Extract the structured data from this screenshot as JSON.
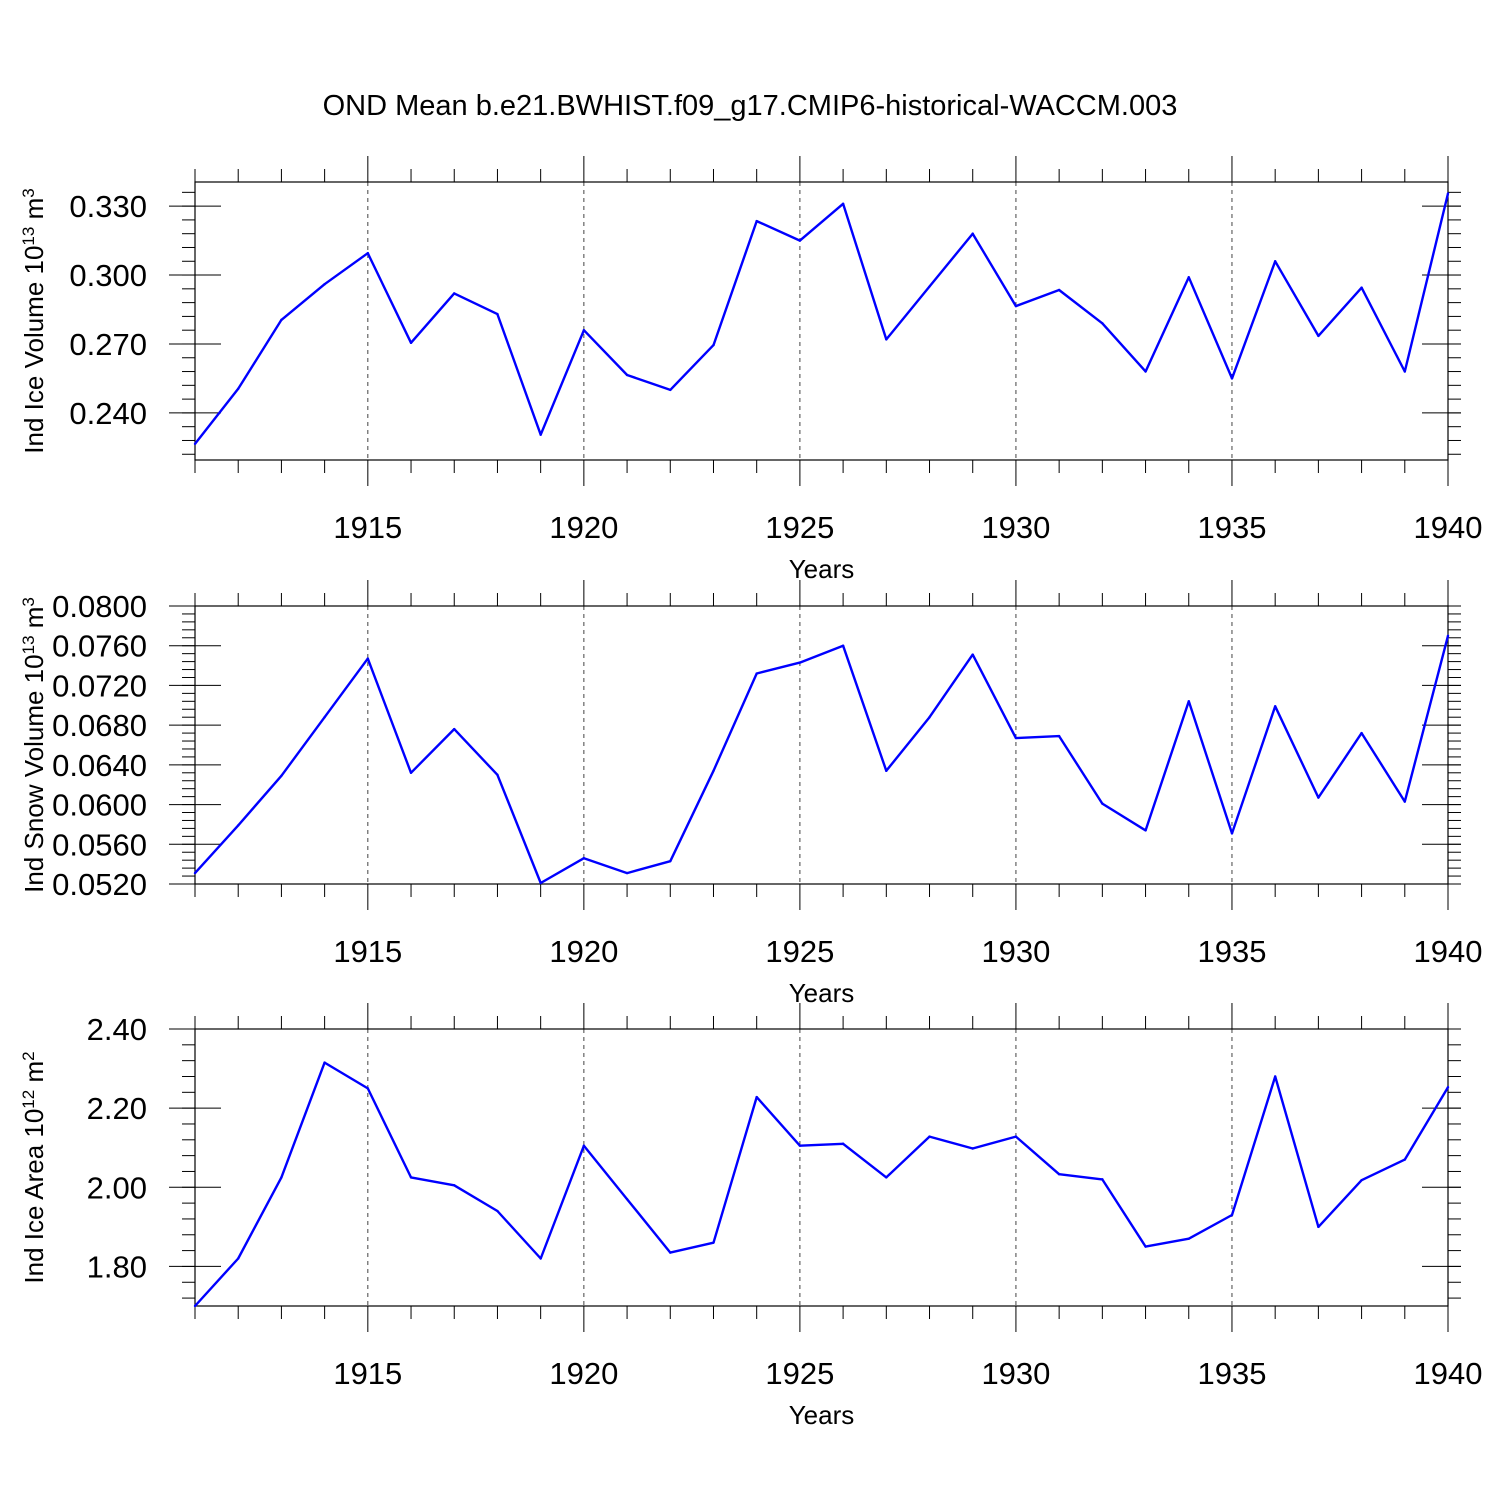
{
  "title": "OND Mean b.e21.BWHIST.f09_g17.CMIP6-historical-WACCM.003",
  "colors": {
    "line": "#0000ff",
    "axis": "#000000",
    "grid": "#000000"
  },
  "chart_data": [
    {
      "type": "line",
      "title": "",
      "xlabel": "Years",
      "ylabel_main": "Ind Ice Volume 10",
      "ylabel_exp": "13",
      "ylabel_unit": "m",
      "ylabel_unit_exp": "3",
      "xlim": [
        1911,
        1940
      ],
      "ylim": [
        0.2195,
        0.3405
      ],
      "yticks": [
        0.24,
        0.27,
        0.3,
        0.33
      ],
      "ytick_labels": [
        "0.240",
        "0.270",
        "0.300",
        "0.330"
      ],
      "yminor_step": 0.006,
      "xticks": [
        1915,
        1920,
        1925,
        1930,
        1935,
        1940
      ],
      "xtick_labels": [
        "1915",
        "1920",
        "1925",
        "1930",
        "1935",
        "1940"
      ],
      "x": [
        1911,
        1912,
        1913,
        1914,
        1915,
        1916,
        1917,
        1918,
        1919,
        1920,
        1921,
        1922,
        1923,
        1924,
        1925,
        1926,
        1927,
        1928,
        1929,
        1930,
        1931,
        1932,
        1933,
        1934,
        1935,
        1936,
        1937,
        1938,
        1939,
        1940
      ],
      "series": [
        {
          "name": "Ind Ice Volume",
          "values": [
            0.2265,
            0.2505,
            0.2805,
            0.296,
            0.3095,
            0.2705,
            0.292,
            0.283,
            0.2305,
            0.276,
            0.2565,
            0.25,
            0.2695,
            0.3235,
            0.315,
            0.331,
            0.272,
            0.295,
            0.318,
            0.2865,
            0.2935,
            0.279,
            0.258,
            0.299,
            0.255,
            0.306,
            0.2735,
            0.2945,
            0.258,
            0.3355
          ]
        }
      ]
    },
    {
      "type": "line",
      "title": "",
      "xlabel": "Years",
      "ylabel_main": "Ind Snow Volume 10",
      "ylabel_exp": "13",
      "ylabel_unit": "m",
      "ylabel_unit_exp": "3",
      "xlim": [
        1911,
        1940
      ],
      "ylim": [
        0.052,
        0.08
      ],
      "yticks": [
        0.052,
        0.056,
        0.06,
        0.064,
        0.068,
        0.072,
        0.076,
        0.08
      ],
      "ytick_labels": [
        "0.0520",
        "0.0560",
        "0.0600",
        "0.0640",
        "0.0680",
        "0.0720",
        "0.0760",
        "0.0800"
      ],
      "yminor_step": 0.0008,
      "xticks": [
        1915,
        1920,
        1925,
        1930,
        1935,
        1940
      ],
      "xtick_labels": [
        "1915",
        "1920",
        "1925",
        "1930",
        "1935",
        "1940"
      ],
      "x": [
        1911,
        1912,
        1913,
        1914,
        1915,
        1916,
        1917,
        1918,
        1919,
        1920,
        1921,
        1922,
        1923,
        1924,
        1925,
        1926,
        1927,
        1928,
        1929,
        1930,
        1931,
        1932,
        1933,
        1934,
        1935,
        1936,
        1937,
        1938,
        1939,
        1940
      ],
      "series": [
        {
          "name": "Ind Snow Volume",
          "values": [
            0.0531,
            0.0579,
            0.0629,
            0.0688,
            0.0747,
            0.0632,
            0.0676,
            0.063,
            0.0521,
            0.0546,
            0.0531,
            0.0543,
            0.0634,
            0.0732,
            0.0743,
            0.076,
            0.0634,
            0.0688,
            0.0751,
            0.0667,
            0.0669,
            0.0601,
            0.0574,
            0.0704,
            0.0571,
            0.0699,
            0.0607,
            0.0672,
            0.0603,
            0.077
          ]
        }
      ]
    },
    {
      "type": "line",
      "title": "",
      "xlabel": "Years",
      "ylabel_main": "Ind Ice Area 10",
      "ylabel_exp": "12",
      "ylabel_unit": "m",
      "ylabel_unit_exp": "2",
      "xlim": [
        1911,
        1940
      ],
      "ylim": [
        1.7,
        2.4
      ],
      "yticks": [
        1.8,
        2.0,
        2.2,
        2.4
      ],
      "ytick_labels": [
        "1.80",
        "2.00",
        "2.20",
        "2.40"
      ],
      "yminor_step": 0.04,
      "xticks": [
        1915,
        1920,
        1925,
        1930,
        1935,
        1940
      ],
      "xtick_labels": [
        "1915",
        "1920",
        "1925",
        "1930",
        "1935",
        "1940"
      ],
      "x": [
        1911,
        1912,
        1913,
        1914,
        1915,
        1916,
        1917,
        1918,
        1919,
        1920,
        1921,
        1922,
        1923,
        1924,
        1925,
        1926,
        1927,
        1928,
        1929,
        1930,
        1931,
        1932,
        1933,
        1934,
        1935,
        1936,
        1937,
        1938,
        1939,
        1940
      ],
      "series": [
        {
          "name": "Ind Ice Area",
          "values": [
            1.7,
            1.82,
            2.025,
            2.315,
            2.25,
            2.025,
            2.005,
            1.94,
            1.82,
            2.105,
            1.97,
            1.835,
            1.86,
            2.228,
            2.105,
            2.11,
            2.025,
            2.128,
            2.098,
            2.128,
            2.033,
            2.02,
            1.85,
            1.87,
            1.93,
            2.28,
            1.9,
            2.018,
            2.07,
            2.253
          ]
        }
      ]
    }
  ]
}
